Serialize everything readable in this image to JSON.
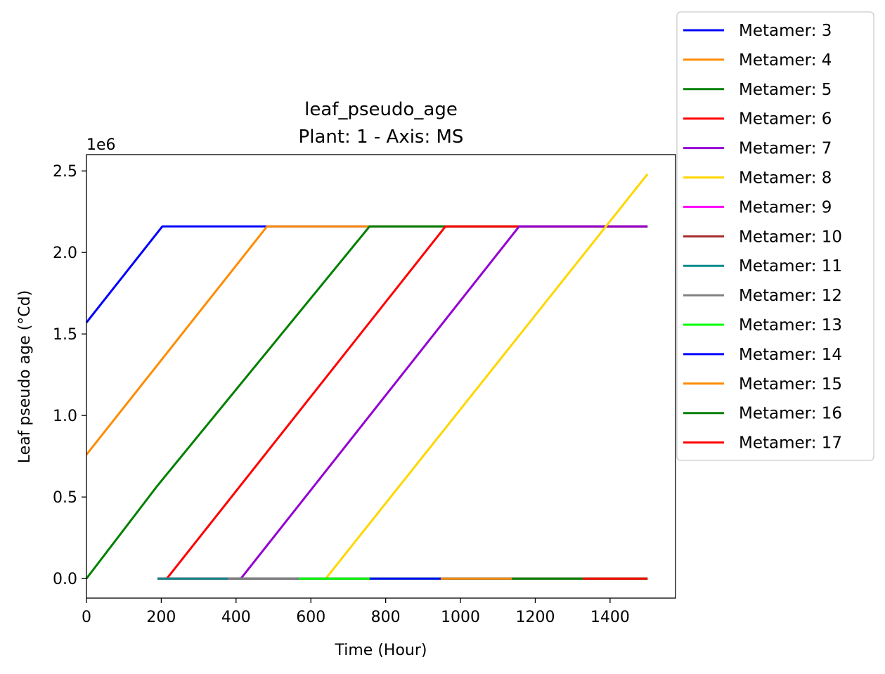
{
  "chart_data": {
    "type": "line",
    "title": "leaf_pseudo_age",
    "subtitle": "Plant: 1 - Axis: MS",
    "xlabel": "Time (Hour)",
    "ylabel": "Leaf pseudo age (°Cd)",
    "y_offset_label": "1e6",
    "y_multiplier": 1000000,
    "xlim": [
      0,
      1575
    ],
    "ylim": [
      -0.12,
      2.6
    ],
    "x_ticks": [
      0,
      200,
      400,
      600,
      800,
      1000,
      1200,
      1400
    ],
    "y_ticks": [
      0.0,
      0.5,
      1.0,
      1.5,
      2.0,
      2.5
    ],
    "y_tick_labels": [
      "0.0",
      "0.5",
      "1.0",
      "1.5",
      "2.0",
      "2.5"
    ],
    "grid": false,
    "legend_position": "outside-top-right",
    "series": [
      {
        "name": "Metamer: 3",
        "color": "#0000ff",
        "x": [
          0,
          203,
          1500
        ],
        "y": [
          1.57,
          2.16,
          2.16
        ]
      },
      {
        "name": "Metamer: 4",
        "color": "#ff8c00",
        "x": [
          0,
          483,
          1500
        ],
        "y": [
          0.76,
          2.16,
          2.16
        ]
      },
      {
        "name": "Metamer: 5",
        "color": "#008000",
        "x": [
          0,
          190,
          757,
          1500
        ],
        "y": [
          0.0,
          0.57,
          2.16,
          2.16
        ]
      },
      {
        "name": "Metamer: 6",
        "color": "#ff0000",
        "x": [
          190,
          215,
          960,
          1500
        ],
        "y": [
          0.0,
          0.0,
          2.16,
          2.16
        ]
      },
      {
        "name": "Metamer: 7",
        "color": "#9400d3",
        "x": [
          190,
          413,
          1157,
          1500
        ],
        "y": [
          0.0,
          0.0,
          2.16,
          2.16
        ]
      },
      {
        "name": "Metamer: 8",
        "color": "#ffd700",
        "x": [
          190,
          640,
          1500
        ],
        "y": [
          0.0,
          0.0,
          2.48
        ]
      },
      {
        "name": "Metamer: 9",
        "color": "#ff00ff",
        "x": [
          190,
          1500
        ],
        "y": [
          0.0,
          0.0
        ]
      },
      {
        "name": "Metamer: 10",
        "color": "#a52a2a",
        "x": [
          190,
          1500
        ],
        "y": [
          0.0,
          0.0
        ]
      },
      {
        "name": "Metamer: 11",
        "color": "#008b8b",
        "x": [
          190,
          1500
        ],
        "y": [
          0.0,
          0.0
        ]
      },
      {
        "name": "Metamer: 12",
        "color": "#808080",
        "x": [
          378,
          1500
        ],
        "y": [
          0.0,
          0.0
        ]
      },
      {
        "name": "Metamer: 13",
        "color": "#00ff00",
        "x": [
          568,
          1500
        ],
        "y": [
          0.0,
          0.0
        ]
      },
      {
        "name": "Metamer: 14",
        "color": "#0000ff",
        "x": [
          757,
          1500
        ],
        "y": [
          0.0,
          0.0
        ]
      },
      {
        "name": "Metamer: 15",
        "color": "#ff8c00",
        "x": [
          947,
          1500
        ],
        "y": [
          0.0,
          0.0
        ]
      },
      {
        "name": "Metamer: 16",
        "color": "#008000",
        "x": [
          1137,
          1500
        ],
        "y": [
          0.0,
          0.0
        ]
      },
      {
        "name": "Metamer: 17",
        "color": "#ff0000",
        "x": [
          1327,
          1500
        ],
        "y": [
          0.0,
          0.0
        ]
      }
    ]
  }
}
